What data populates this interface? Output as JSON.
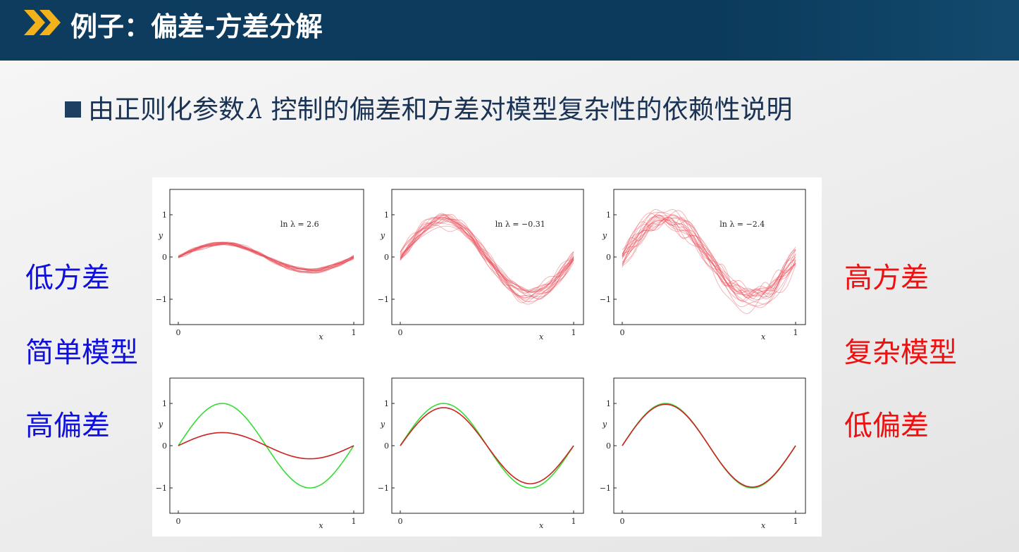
{
  "header": {
    "title": "例子：偏差-方差分解"
  },
  "subtitle": {
    "before": "由正则化参数",
    "lambda": "λ",
    "after": "控制的偏差和方差对模型复杂性的依赖性说明"
  },
  "left_labels": [
    "低方差",
    "简单模型",
    "高偏差"
  ],
  "right_labels": [
    "高方差",
    "复杂模型",
    "低偏差"
  ],
  "colors": {
    "header_bg": "#0d3c5e",
    "chevron": "#f2b21c",
    "left_text": "#1010dd",
    "right_text": "#ee1111",
    "fit_lines": "#e8505a",
    "true_function": "#33dd33",
    "average_fit": "#cc2222"
  },
  "chart_data": [
    {
      "type": "line",
      "position": "top-left",
      "annotation": "ln λ = 2.6",
      "xlabel": "x",
      "ylabel": "y",
      "xlim": [
        0,
        1
      ],
      "ylim": [
        -1.6,
        1.6
      ],
      "x_ticks": [
        "0",
        "1"
      ],
      "y_ticks": [
        "1",
        "0",
        "−1"
      ],
      "series_count": 20,
      "description_values": {
        "center_amplitude": 0.33,
        "spread": 0.05
      }
    },
    {
      "type": "line",
      "position": "top-middle",
      "annotation": "ln λ = −0.31",
      "xlabel": "x",
      "ylabel": "y",
      "xlim": [
        0,
        1
      ],
      "ylim": [
        -1.6,
        1.6
      ],
      "x_ticks": [
        "0",
        "1"
      ],
      "y_ticks": [
        "1",
        "0",
        "−1"
      ],
      "series_count": 20,
      "description_values": {
        "center_amplitude": 0.88,
        "spread": 0.15
      }
    },
    {
      "type": "line",
      "position": "top-right",
      "annotation": "ln λ = −2.4",
      "xlabel": "x",
      "ylabel": "y",
      "xlim": [
        0,
        1
      ],
      "ylim": [
        -1.6,
        1.6
      ],
      "x_ticks": [
        "0",
        "1"
      ],
      "y_ticks": [
        "1",
        "0",
        "−1"
      ],
      "series_count": 20,
      "description_values": {
        "center_amplitude": 0.98,
        "spread": 0.3
      }
    },
    {
      "type": "line",
      "position": "bottom-left",
      "xlabel": "x",
      "ylabel": "y",
      "xlim": [
        0,
        1
      ],
      "ylim": [
        -1.6,
        1.6
      ],
      "x_ticks": [
        "0",
        "1"
      ],
      "y_ticks": [
        "1",
        "0",
        "−1"
      ],
      "series": [
        {
          "role": "true_function",
          "color": "#33dd33",
          "amplitude": 1.0
        },
        {
          "role": "average_fit",
          "color": "#cc2222",
          "amplitude": 0.31
        }
      ]
    },
    {
      "type": "line",
      "position": "bottom-middle",
      "xlabel": "x",
      "ylabel": "y",
      "xlim": [
        0,
        1
      ],
      "ylim": [
        -1.6,
        1.6
      ],
      "x_ticks": [
        "0",
        "1"
      ],
      "y_ticks": [
        "1",
        "0",
        "−1"
      ],
      "series": [
        {
          "role": "true_function",
          "color": "#33dd33",
          "amplitude": 1.0
        },
        {
          "role": "average_fit",
          "color": "#cc2222",
          "amplitude": 0.9
        }
      ]
    },
    {
      "type": "line",
      "position": "bottom-right",
      "xlabel": "x",
      "ylabel": "y",
      "xlim": [
        0,
        1
      ],
      "ylim": [
        -1.6,
        1.6
      ],
      "x_ticks": [
        "0",
        "1"
      ],
      "y_ticks": [
        "1",
        "0",
        "−1"
      ],
      "series": [
        {
          "role": "true_function",
          "color": "#33dd33",
          "amplitude": 1.0
        },
        {
          "role": "average_fit",
          "color": "#cc2222",
          "amplitude": 0.98
        }
      ]
    }
  ]
}
